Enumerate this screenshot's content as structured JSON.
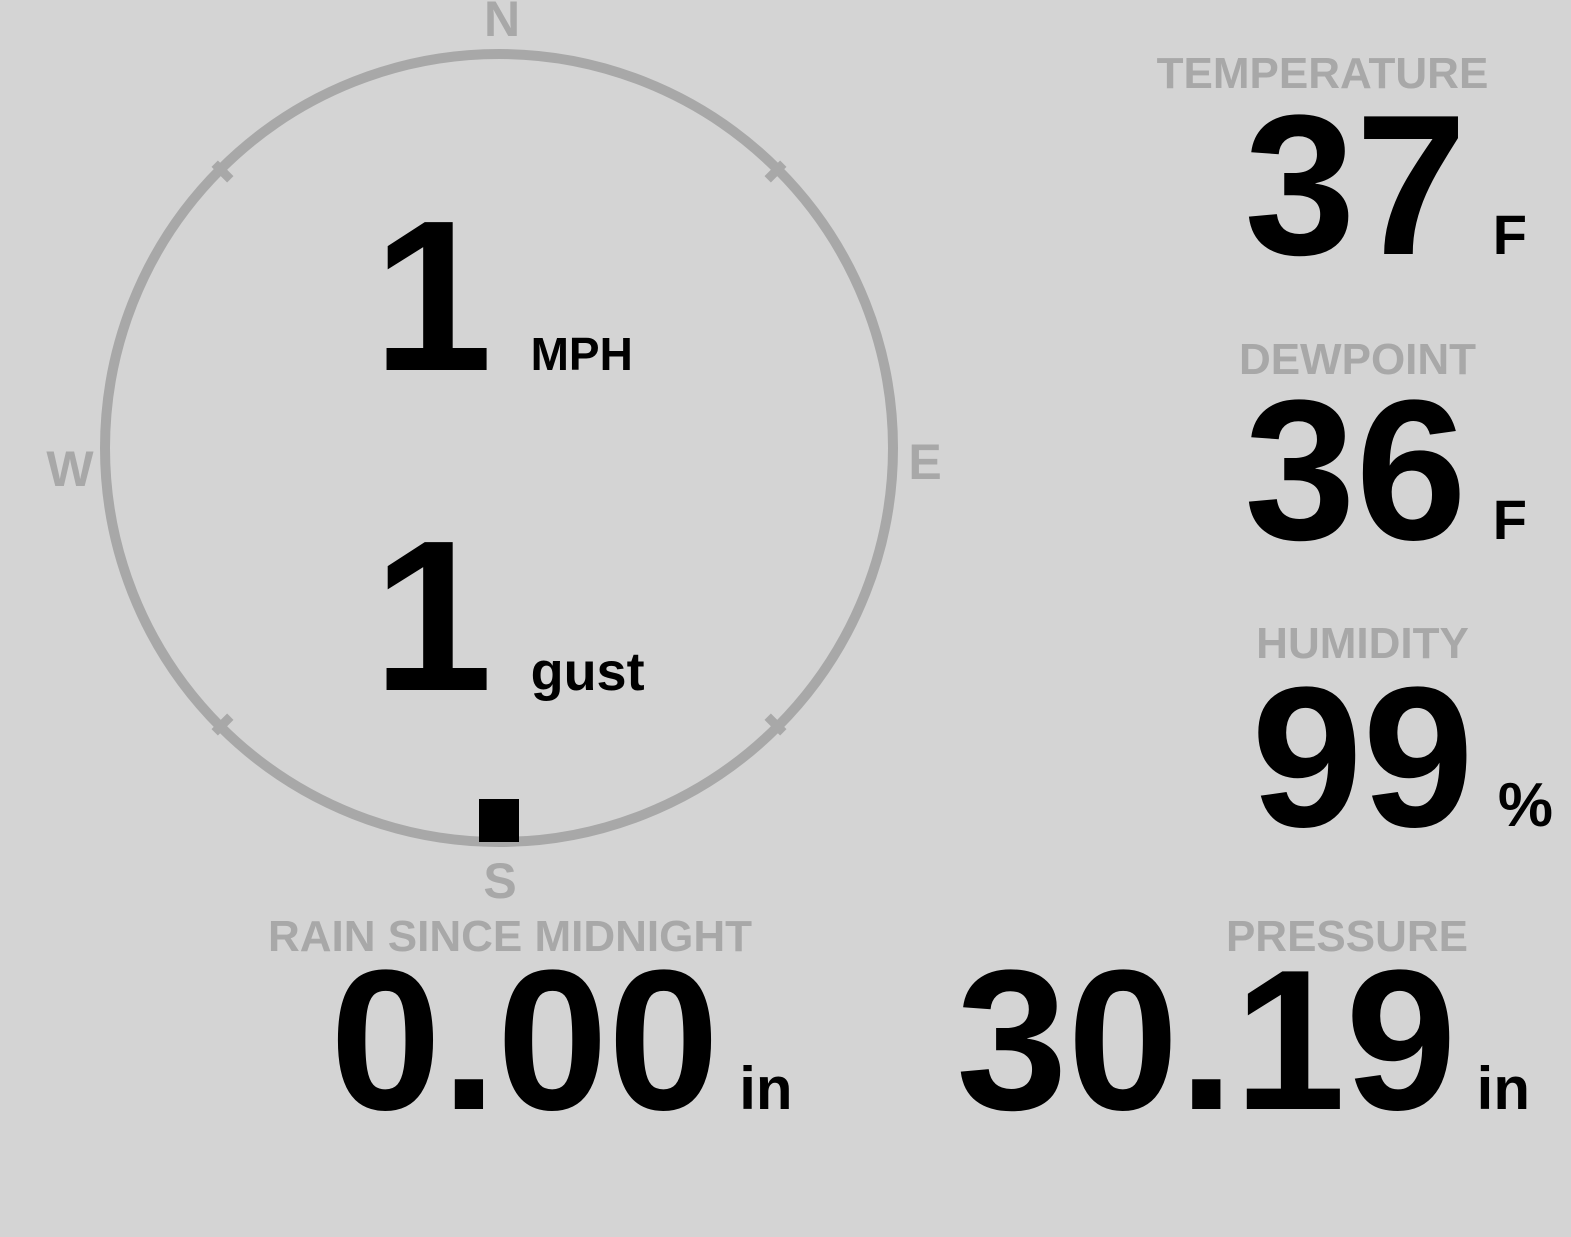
{
  "colors": {
    "background": "#d4d4d4",
    "primary_text": "#000000",
    "muted_text": "#a8a8a8"
  },
  "wind": {
    "speed": "1",
    "speed_unit": "MPH",
    "gust": "1",
    "gust_unit": "gust",
    "direction": "S",
    "direction_degrees": 180,
    "compass": {
      "north": "N",
      "east": "E",
      "south": "S",
      "west": "W"
    }
  },
  "stats": {
    "temperature": {
      "label": "TEMPERATURE",
      "value": "37",
      "unit": "F"
    },
    "dewpoint": {
      "label": "DEWPOINT",
      "value": "36",
      "unit": "F"
    },
    "humidity": {
      "label": "HUMIDITY",
      "value": "99",
      "unit": "%"
    },
    "rain": {
      "label": "RAIN SINCE MIDNIGHT",
      "value": "0.00",
      "unit": "in"
    },
    "pressure": {
      "label": "PRESSURE",
      "value": "30.19",
      "unit": "in"
    }
  }
}
